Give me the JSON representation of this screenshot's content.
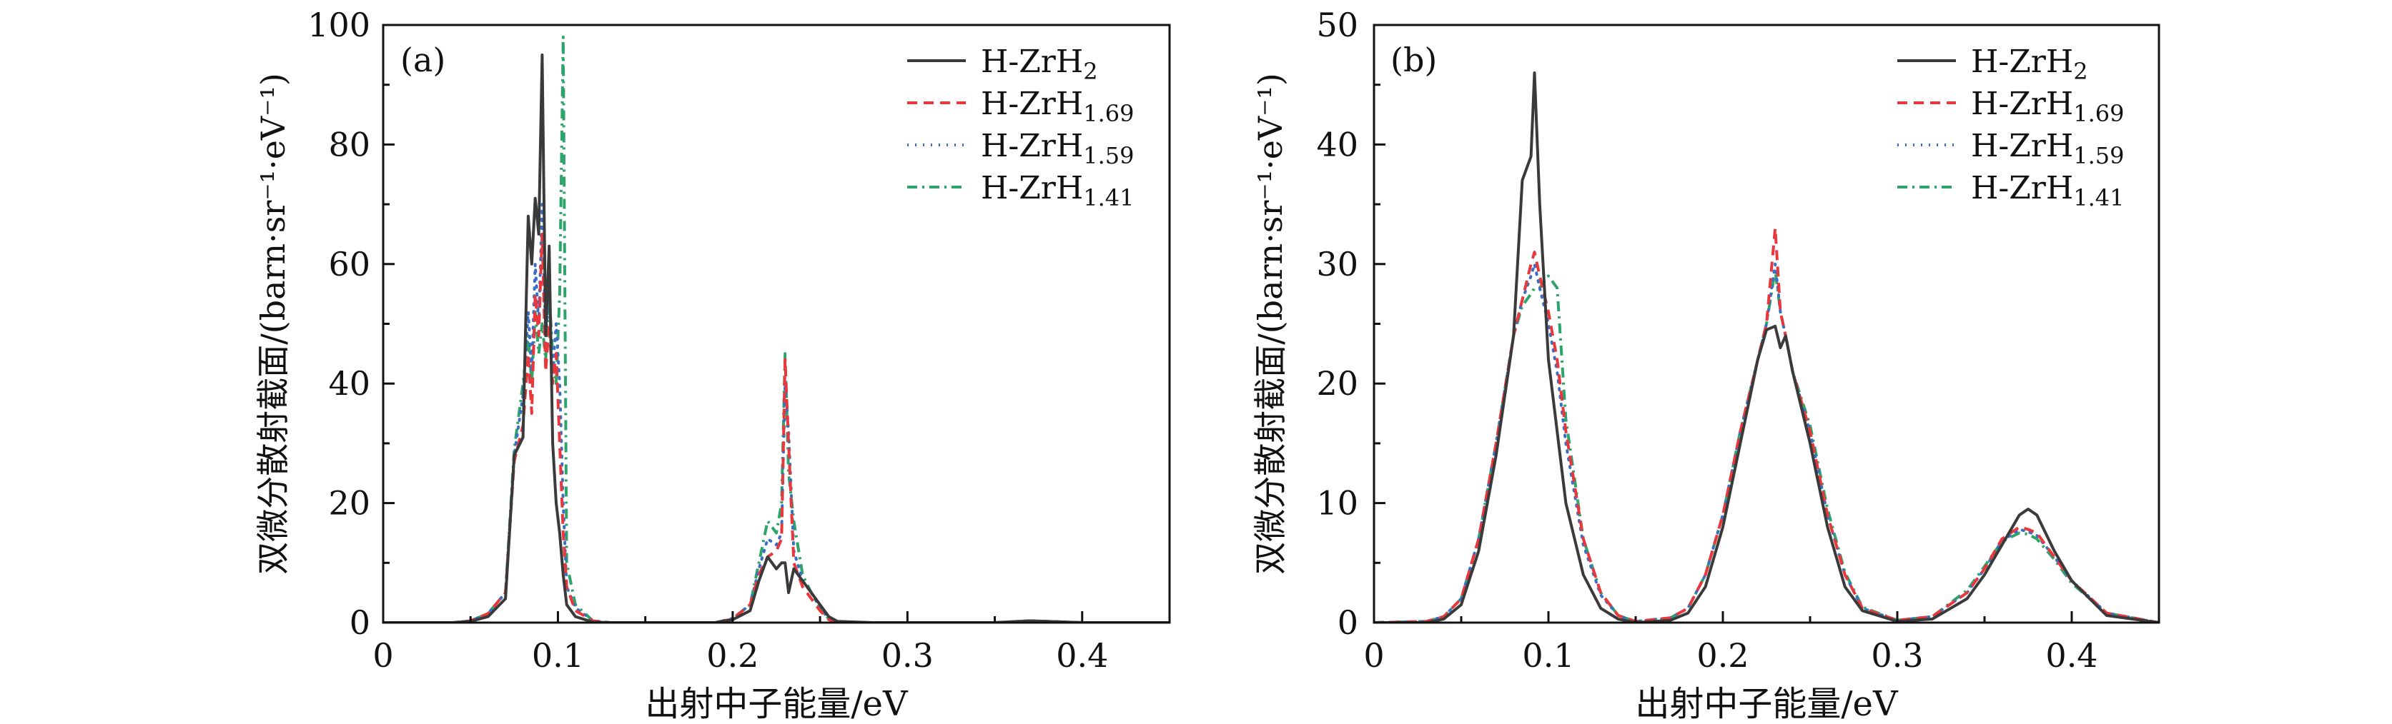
{
  "colors": {
    "ZrH2": "#3a3a3a",
    "ZrH1.69": "#e8383d",
    "ZrH1.59": "#3b6fc4",
    "ZrH1.41": "#2ea36a"
  },
  "chart_data": [
    {
      "type": "line",
      "panel_label": "(a)",
      "xlabel": "出射中子能量/eV",
      "ylabel": "双微分散射截面/(barn·sr⁻¹·eV⁻¹)",
      "xlim": [
        0,
        0.45
      ],
      "ylim": [
        0,
        100
      ],
      "xticks": [
        "0",
        "0.1",
        "0.2",
        "0.3",
        "0.4"
      ],
      "yticks": [
        "0",
        "20",
        "40",
        "60",
        "80",
        "100"
      ],
      "grid": false,
      "legend_position": "top-right",
      "x": [
        0,
        0.04,
        0.05,
        0.06,
        0.07,
        0.075,
        0.08,
        0.083,
        0.085,
        0.087,
        0.089,
        0.091,
        0.093,
        0.095,
        0.097,
        0.099,
        0.101,
        0.103,
        0.105,
        0.11,
        0.12,
        0.13,
        0.15,
        0.19,
        0.2,
        0.21,
        0.215,
        0.22,
        0.225,
        0.228,
        0.23,
        0.232,
        0.235,
        0.24,
        0.245,
        0.25,
        0.255,
        0.26,
        0.28,
        0.35,
        0.37,
        0.38,
        0.4,
        0.45
      ],
      "series": [
        {
          "name": "H-ZrH",
          "sub": "2",
          "key": "ZrH2",
          "style": "solid",
          "values": [
            0,
            0,
            0.2,
            1,
            4,
            28,
            31,
            68,
            60,
            71,
            65,
            95,
            48,
            63,
            30,
            20,
            15,
            8,
            3,
            1,
            0.1,
            0,
            0,
            0,
            0.5,
            2,
            7,
            11,
            9,
            10,
            10,
            5,
            9,
            7,
            5,
            3,
            1,
            0.2,
            0,
            0,
            0.3,
            0.2,
            0,
            0
          ]
        },
        {
          "name": "H-ZrH",
          "sub": "1.69",
          "key": "ZrH1.69",
          "style": "dash",
          "values": [
            0,
            0,
            0.3,
            1.5,
            5,
            27,
            33,
            45,
            35,
            55,
            48,
            65,
            42,
            50,
            40,
            45,
            30,
            15,
            6,
            2,
            0.3,
            0,
            0,
            0,
            0.6,
            3,
            8,
            11,
            12,
            14,
            44,
            30,
            10,
            6,
            4,
            2,
            0.5,
            0,
            0,
            0,
            0.3,
            0.2,
            0,
            0
          ]
        },
        {
          "name": "H-ZrH",
          "sub": "1.59",
          "key": "ZrH1.59",
          "style": "dot",
          "values": [
            0,
            0,
            0.3,
            1.5,
            5,
            28,
            38,
            52,
            42,
            60,
            50,
            70,
            48,
            55,
            42,
            50,
            40,
            20,
            6,
            2.5,
            0.3,
            0,
            0,
            0,
            0.7,
            3,
            9,
            14,
            13,
            15,
            40,
            32,
            12,
            7,
            5,
            2.5,
            0.6,
            0,
            0,
            0,
            0.3,
            0.2,
            0,
            0
          ]
        },
        {
          "name": "H-ZrH",
          "sub": "1.41",
          "key": "ZrH1.41",
          "style": "dashdot",
          "values": [
            0,
            0,
            0.3,
            1.5,
            5,
            29,
            40,
            48,
            40,
            52,
            45,
            50,
            44,
            55,
            45,
            40,
            55,
            98,
            10,
            3,
            0.3,
            0,
            0,
            0,
            0.7,
            3,
            10,
            17,
            15,
            20,
            45,
            25,
            17,
            8,
            5,
            2.5,
            0.6,
            0,
            0,
            0,
            0.3,
            0.2,
            0,
            0
          ]
        }
      ]
    },
    {
      "type": "line",
      "panel_label": "(b)",
      "xlabel": "出射中子能量/eV",
      "ylabel": "双微分散射截面/(barn·sr⁻¹·eV⁻¹)",
      "xlim": [
        0,
        0.45
      ],
      "ylim": [
        0,
        50
      ],
      "xticks": [
        "0",
        "0.1",
        "0.2",
        "0.3",
        "0.4"
      ],
      "yticks": [
        "0",
        "10",
        "20",
        "30",
        "40",
        "50"
      ],
      "grid": false,
      "legend_position": "top-right",
      "x": [
        0,
        0.03,
        0.04,
        0.05,
        0.06,
        0.07,
        0.08,
        0.085,
        0.09,
        0.092,
        0.095,
        0.1,
        0.105,
        0.11,
        0.12,
        0.13,
        0.14,
        0.15,
        0.17,
        0.18,
        0.19,
        0.2,
        0.21,
        0.22,
        0.225,
        0.23,
        0.233,
        0.236,
        0.24,
        0.25,
        0.26,
        0.27,
        0.28,
        0.3,
        0.32,
        0.34,
        0.35,
        0.36,
        0.37,
        0.375,
        0.38,
        0.39,
        0.4,
        0.42,
        0.45
      ],
      "series": [
        {
          "name": "H-ZrH",
          "sub": "2",
          "key": "ZrH2",
          "style": "solid",
          "values": [
            0,
            0,
            0.3,
            1.5,
            6,
            14,
            24,
            37,
            39,
            46,
            35,
            22,
            16,
            10,
            4,
            1.2,
            0.3,
            0,
            0.2,
            0.8,
            3,
            8,
            15,
            22,
            24.5,
            24.8,
            23,
            24,
            21,
            15,
            8,
            3,
            1,
            0.1,
            0.3,
            2,
            4,
            6.5,
            9,
            9.5,
            9,
            6,
            3.5,
            0.6,
            0
          ]
        },
        {
          "name": "H-ZrH",
          "sub": "1.69",
          "key": "ZrH1.69",
          "style": "dash",
          "values": [
            0,
            0.1,
            0.5,
            2,
            7,
            15,
            24,
            27,
            30,
            31,
            29,
            26,
            22,
            16,
            7,
            2.5,
            0.6,
            0.1,
            0.4,
            1.2,
            4,
            9,
            16,
            22,
            25,
            33,
            26,
            24,
            21,
            16,
            9,
            4,
            1.2,
            0.2,
            0.5,
            2.5,
            4.5,
            7,
            8,
            7.8,
            7.5,
            5.5,
            3.5,
            0.8,
            0
          ]
        },
        {
          "name": "H-ZrH",
          "sub": "1.59",
          "key": "ZrH1.59",
          "style": "dot",
          "values": [
            0,
            0.1,
            0.5,
            2,
            7,
            15,
            24,
            27,
            29,
            30,
            28,
            25,
            21,
            15,
            6.5,
            2.3,
            0.6,
            0.1,
            0.4,
            1.2,
            4,
            9,
            16,
            22,
            25,
            30,
            26,
            24,
            21,
            16,
            9,
            4,
            1.2,
            0.2,
            0.5,
            2.5,
            4.5,
            6.8,
            7.8,
            7.6,
            7.3,
            5.5,
            3.5,
            0.8,
            0
          ]
        },
        {
          "name": "H-ZrH",
          "sub": "1.41",
          "key": "ZrH1.41",
          "style": "dashdot",
          "values": [
            0,
            0.1,
            0.5,
            2,
            7,
            15,
            24,
            26.5,
            27.5,
            28,
            28,
            29,
            28,
            17,
            7,
            2.5,
            0.6,
            0.1,
            0.4,
            1.2,
            4,
            9,
            16,
            22,
            25,
            29.5,
            26,
            24,
            21,
            16.5,
            9.5,
            4.2,
            1.3,
            0.2,
            0.5,
            2.7,
            4.7,
            6.8,
            7.5,
            7.4,
            7,
            5.3,
            3.3,
            0.8,
            0
          ]
        }
      ]
    }
  ]
}
